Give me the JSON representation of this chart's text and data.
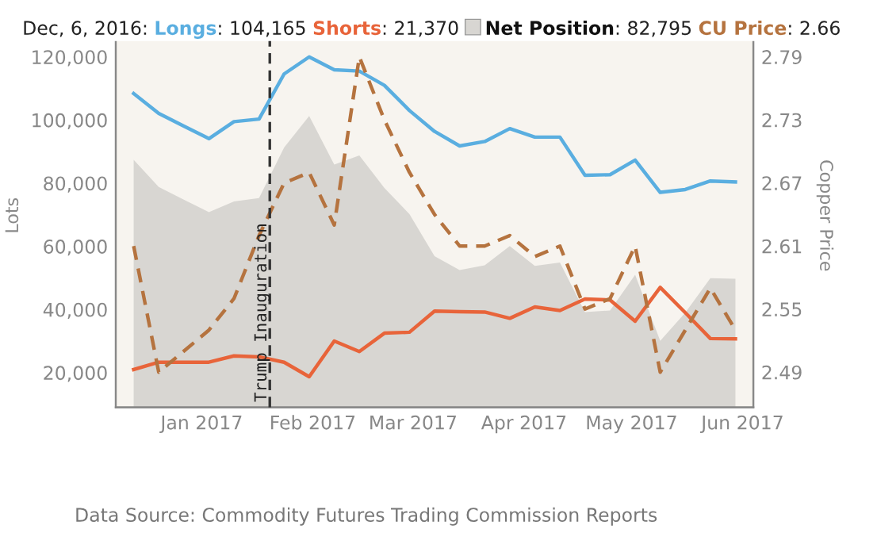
{
  "chart_data": {
    "type": "line",
    "ylabel": "Lots",
    "y2label": "Copper Price",
    "x": [
      "2016-12-13",
      "2016-12-20",
      "2016-12-27",
      "2017-01-03",
      "2017-01-10",
      "2017-01-17",
      "2017-01-24",
      "2017-01-31",
      "2017-02-07",
      "2017-02-14",
      "2017-02-21",
      "2017-02-28",
      "2017-03-07",
      "2017-03-14",
      "2017-03-21",
      "2017-03-28",
      "2017-04-04",
      "2017-04-11",
      "2017-04-18",
      "2017-04-25",
      "2017-05-02",
      "2017-05-09",
      "2017-05-16",
      "2017-05-23",
      "2017-05-30"
    ],
    "series": [
      {
        "name": "Net Position",
        "type": "area",
        "color": "#d8d6d2",
        "values": [
          87400,
          78800,
          74800,
          70800,
          74200,
          75300,
          91300,
          101300,
          85900,
          88800,
          78500,
          70200,
          56900,
          52500,
          54000,
          60100,
          53800,
          54900,
          39200,
          39700,
          51000,
          30100,
          39000,
          49900,
          49700
        ]
      },
      {
        "name": "Longs",
        "color": "#5aaee0",
        "line_style": "solid",
        "values": [
          108400,
          102100,
          98100,
          94100,
          99500,
          100300,
          114600,
          120000,
          115900,
          115500,
          111000,
          103000,
          96400,
          91800,
          93200,
          97300,
          94600,
          94600,
          82500,
          82700,
          87300,
          77100,
          78000,
          80700,
          80400
        ]
      },
      {
        "name": "Shorts",
        "color": "#e8643a",
        "line_style": "solid",
        "values": [
          21000,
          23300,
          23300,
          23300,
          25300,
          25000,
          23300,
          18700,
          30000,
          26700,
          32500,
          32800,
          39500,
          39300,
          39200,
          37200,
          40800,
          39700,
          43300,
          43000,
          36300,
          47000,
          39000,
          30800,
          30700
        ]
      },
      {
        "name": "CU Price",
        "axis": "y2",
        "color": "#b5733f",
        "line_style": "dashed",
        "values": [
          2.61,
          2.49,
          2.51,
          2.53,
          2.56,
          2.62,
          2.67,
          2.68,
          2.63,
          2.79,
          2.73,
          2.68,
          2.64,
          2.61,
          2.61,
          2.62,
          2.6,
          2.61,
          2.55,
          2.56,
          2.61,
          2.49,
          2.53,
          2.57,
          2.53
        ]
      }
    ],
    "xlim": [
      "2016-12-08",
      "2017-06-04"
    ],
    "xticks": [
      {
        "value": "2017-01-01",
        "label": "Jan 2017"
      },
      {
        "value": "2017-02-01",
        "label": "Feb 2017"
      },
      {
        "value": "2017-03-01",
        "label": "Mar 2017"
      },
      {
        "value": "2017-04-01",
        "label": "Apr 2017"
      },
      {
        "value": "2017-05-01",
        "label": "May 2017"
      },
      {
        "value": "2017-06-01",
        "label": "Jun 2017"
      }
    ],
    "ylim": [
      9000,
      130500
    ],
    "yticks": [
      {
        "value": 20000,
        "label": "20,000"
      },
      {
        "value": 40000,
        "label": "40,000"
      },
      {
        "value": 60000,
        "label": "60,000"
      },
      {
        "value": 80000,
        "label": "80,000"
      },
      {
        "value": 100000,
        "label": "100,000"
      },
      {
        "value": 120000,
        "label": "120,000"
      }
    ],
    "y2lim": [
      2.4565,
      2.8215
    ],
    "y2ticks": [
      2.49,
      2.55,
      2.61,
      2.67,
      2.73,
      2.79
    ],
    "ref_lines": [
      {
        "axis": "x",
        "value": "2017-01-20",
        "label": "Trump Inauguration",
        "color": "#333333",
        "line_style": "dashed"
      }
    ],
    "annotations": [
      "Dec, 6, 2016:",
      ": 82,795",
      ": 104,165",
      ": 21,370",
      ": 2.66",
      "Data Source: Commodity Futures Trading Commission Reports"
    ],
    "grid": false,
    "legend": "top",
    "marker": "none"
  }
}
